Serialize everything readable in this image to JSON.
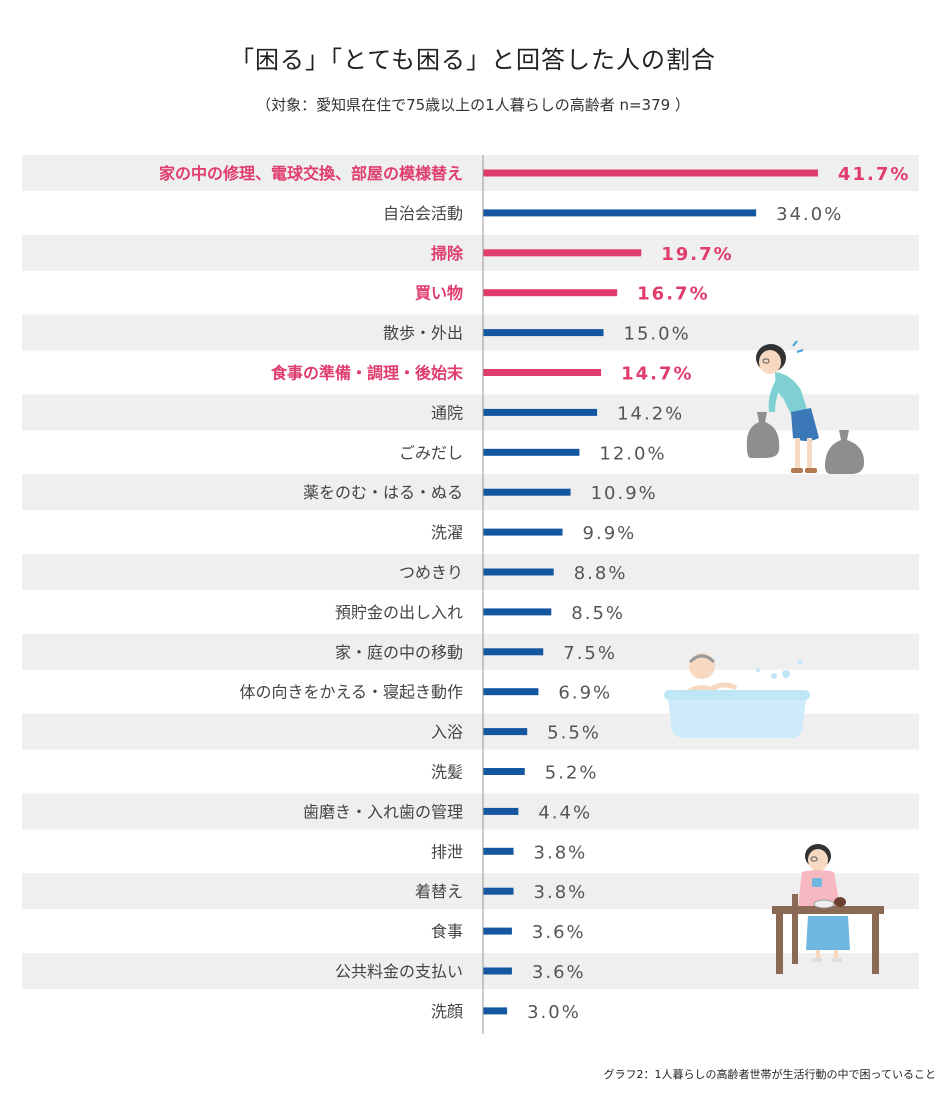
{
  "title": "「困る」「とても困る」と回答した人の割合",
  "subtitle": "（対象：愛知県在住で75歳以上の1人暮らしの高齢者 n=379 ）",
  "caption": "グラフ2：1人暮らしの高齢者世帯が生活行動の中で困っていること",
  "colors": {
    "highlight": "#e03c6c",
    "normal": "#1457a0",
    "band": "#efefef",
    "axis": "#999999"
  },
  "chart_data": {
    "type": "bar",
    "orientation": "horizontal",
    "title": "「困る」「とても困る」と回答した人の割合",
    "xlim": [
      0,
      50
    ],
    "unit": "%",
    "categories": [
      "家の中の修理、電球交換、部屋の模様替え",
      "自治会活動",
      "掃除",
      "買い物",
      "散歩・外出",
      "食事の準備・調理・後始末",
      "通院",
      "ごみだし",
      "薬をのむ・はる・ぬる",
      "洗濯",
      "つめきり",
      "預貯金の出し入れ",
      "家・庭の中の移動",
      "体の向きをかえる・寝起き動作",
      "入浴",
      "洗髪",
      "歯磨き・入れ歯の管理",
      "排泄",
      "着替え",
      "食事",
      "公共料金の支払い",
      "洗顔"
    ],
    "values": [
      41.7,
      34.0,
      19.7,
      16.7,
      15.0,
      14.7,
      14.2,
      12.0,
      10.9,
      9.9,
      8.8,
      8.5,
      7.5,
      6.9,
      5.5,
      5.2,
      4.4,
      3.8,
      3.8,
      3.6,
      3.6,
      3.0
    ],
    "value_labels": [
      "41.7%",
      "34.0%",
      "19.7%",
      "16.7%",
      "15.0%",
      "14.7%",
      "14.2%",
      "12.0%",
      "10.9%",
      "9.9%",
      "8.8%",
      "8.5%",
      "7.5%",
      "6.9%",
      "5.5%",
      "5.2%",
      "4.4%",
      "3.8%",
      "3.8%",
      "3.6%",
      "3.6%",
      "3.0%"
    ],
    "highlighted": [
      true,
      false,
      true,
      true,
      false,
      true,
      false,
      false,
      false,
      false,
      false,
      false,
      false,
      false,
      false,
      false,
      false,
      false,
      false,
      false,
      false,
      false
    ],
    "grid": false,
    "legend": "none"
  },
  "illustrations": [
    "person-carrying-garbage-bags-icon",
    "person-bathing-icon",
    "person-eating-at-table-icon"
  ]
}
